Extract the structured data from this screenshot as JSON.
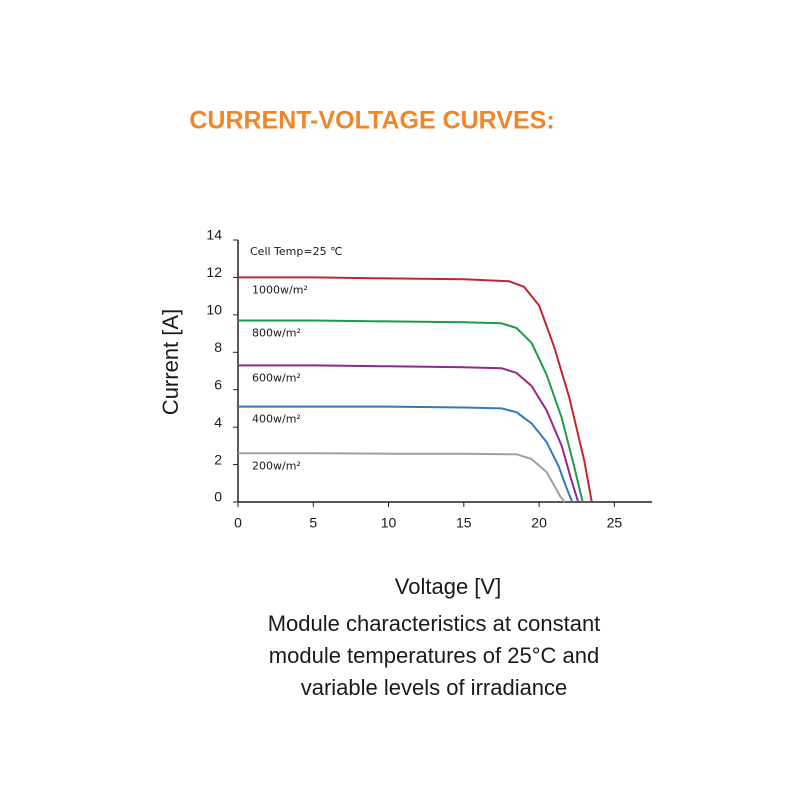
{
  "chart_data": {
    "type": "line",
    "title": "CURRENT-VOLTAGE  CURVES:",
    "annotation": "Cell Temp=25 ℃",
    "y_label": "Current [A]",
    "x_label": "Voltage [V]",
    "caption": [
      "Module characteristics at constant",
      "module temperatures of 25°C and",
      "variable levels of irradiance"
    ],
    "xlim": [
      0,
      27.5
    ],
    "ylim": [
      0,
      14
    ],
    "xticks": [
      0,
      5,
      10,
      15,
      20,
      25
    ],
    "yticks": [
      0,
      2,
      4,
      6,
      8,
      10,
      12,
      14
    ],
    "series": [
      {
        "name": "1000w/m²",
        "color": "#c0272d",
        "x": [
          0,
          5,
          10,
          15,
          18,
          19,
          20,
          21,
          22,
          23,
          23.5
        ],
        "values": [
          12.0,
          12.0,
          11.95,
          11.9,
          11.8,
          11.5,
          10.5,
          8.3,
          5.6,
          2.2,
          0
        ]
      },
      {
        "name": "800w/m²",
        "color": "#1f9a4a",
        "x": [
          0,
          5,
          10,
          15,
          17.5,
          18.5,
          19.5,
          20.5,
          21.5,
          22.3,
          22.9
        ],
        "values": [
          9.7,
          9.7,
          9.65,
          9.6,
          9.55,
          9.3,
          8.5,
          6.8,
          4.5,
          2.0,
          0
        ]
      },
      {
        "name": "600w/m²",
        "color": "#93278f",
        "x": [
          0,
          5,
          10,
          15,
          17.5,
          18.5,
          19.5,
          20.5,
          21.5,
          22.1,
          22.6
        ],
        "values": [
          7.3,
          7.3,
          7.25,
          7.2,
          7.15,
          6.9,
          6.2,
          4.9,
          3.0,
          1.3,
          0
        ]
      },
      {
        "name": "400w/m²",
        "color": "#2e7bbf",
        "x": [
          0,
          5,
          10,
          15,
          17.5,
          18.5,
          19.5,
          20.5,
          21.3,
          21.8,
          22.2
        ],
        "values": [
          5.1,
          5.1,
          5.1,
          5.05,
          5.0,
          4.8,
          4.2,
          3.2,
          1.9,
          0.8,
          0
        ]
      },
      {
        "name": "200w/m²",
        "color": "#a0a0a0",
        "x": [
          0,
          5,
          10,
          15,
          18.5,
          19.5,
          20.5,
          21.0,
          21.4,
          21.7
        ],
        "values": [
          2.6,
          2.6,
          2.58,
          2.58,
          2.55,
          2.3,
          1.6,
          0.9,
          0.3,
          0
        ]
      }
    ]
  }
}
